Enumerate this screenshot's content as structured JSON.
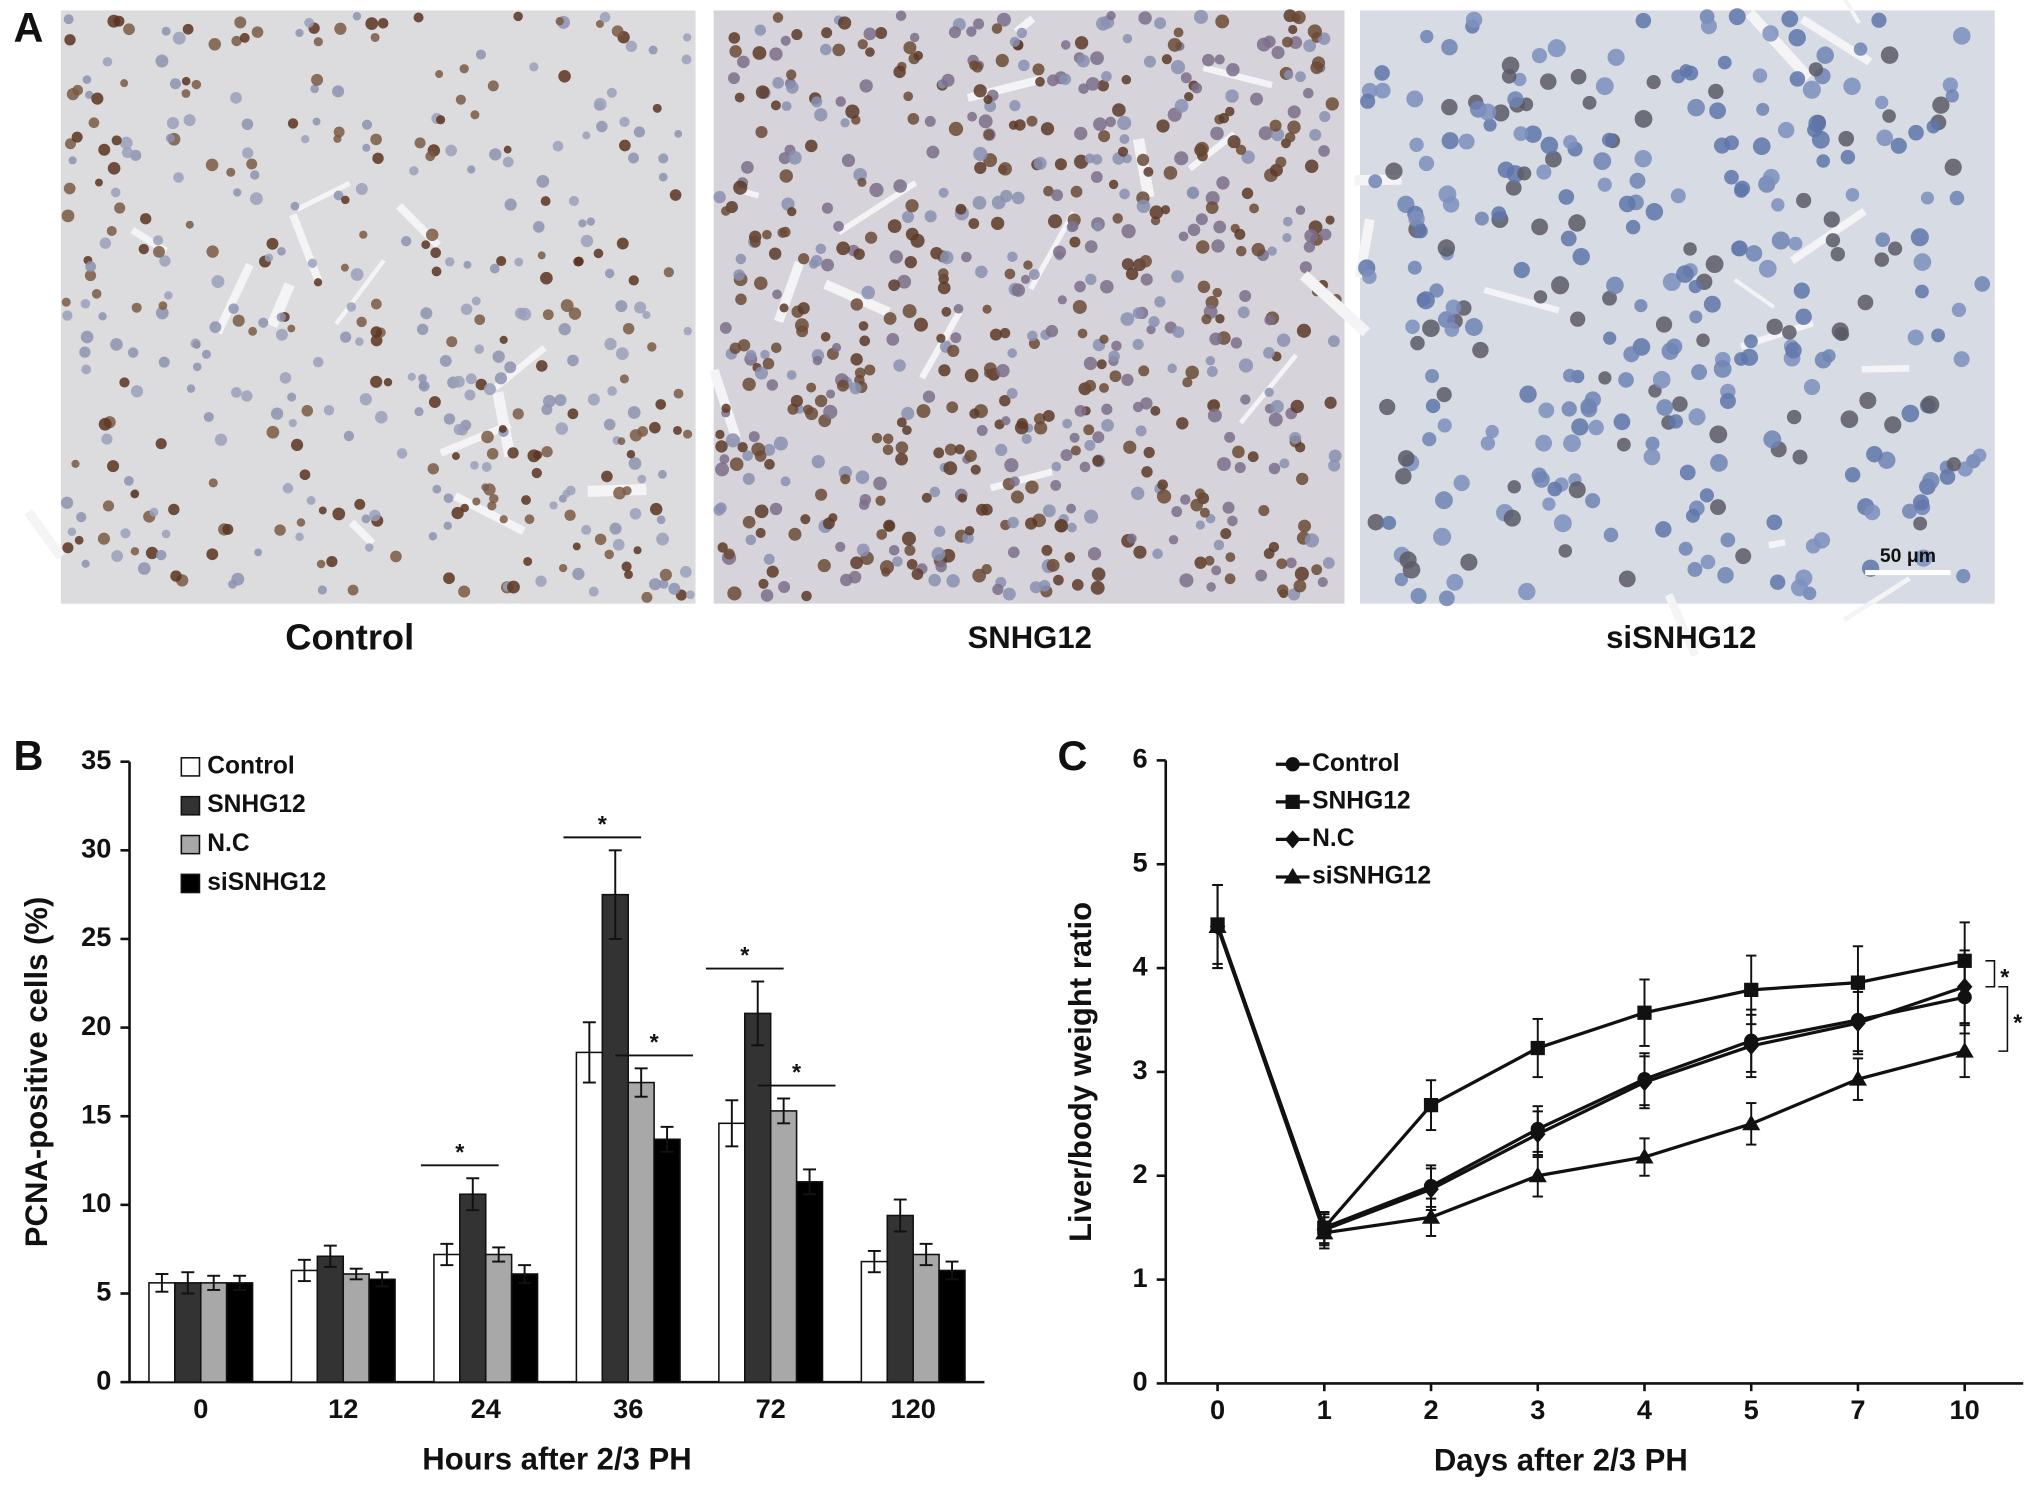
{
  "panel_labels": [
    "A",
    "B",
    "C"
  ],
  "images": [
    {
      "caption": "Control"
    },
    {
      "caption": "SNHG12"
    },
    {
      "caption": "siSNHG12"
    }
  ],
  "scale_bar": "50 μm",
  "chart_data": [
    {
      "type": "bar",
      "x_label": "Hours after 2/3 PH",
      "y_label": "PCNA-positive cells (%)",
      "categories": [
        "0",
        "12",
        "24",
        "36",
        "72",
        "120"
      ],
      "ylim": [
        0,
        35
      ],
      "yticks": [
        0,
        5,
        10,
        15,
        20,
        25,
        30,
        35
      ],
      "series": [
        {
          "name": "Control",
          "color": "#ffffff",
          "values": [
            5.6,
            6.3,
            7.2,
            18.6,
            14.6,
            6.8
          ],
          "errors": [
            0.5,
            0.6,
            0.6,
            1.7,
            1.3,
            0.6
          ]
        },
        {
          "name": "SNHG12",
          "color": "#333333",
          "values": [
            5.6,
            7.1,
            10.6,
            27.5,
            20.8,
            9.4
          ],
          "errors": [
            0.6,
            0.6,
            0.9,
            2.5,
            1.8,
            0.9
          ]
        },
        {
          "name": "N.C",
          "color": "#a8a8a8",
          "values": [
            5.6,
            6.1,
            7.2,
            16.9,
            15.3,
            7.2
          ],
          "errors": [
            0.4,
            0.3,
            0.4,
            0.8,
            0.7,
            0.6
          ]
        },
        {
          "name": "siSNHG12",
          "color": "#000000",
          "values": [
            5.6,
            5.8,
            6.1,
            13.7,
            11.3,
            6.3
          ],
          "errors": [
            0.4,
            0.4,
            0.5,
            0.7,
            0.7,
            0.5
          ]
        }
      ],
      "significance": [
        {
          "label": "*",
          "category": "24",
          "series": [
            "Control",
            "SNHG12"
          ]
        },
        {
          "label": "*",
          "category": "36",
          "series": [
            "Control",
            "SNHG12"
          ]
        },
        {
          "label": "*",
          "category": "36",
          "series": [
            "N.C",
            "siSNHG12"
          ]
        },
        {
          "label": "*",
          "category": "72",
          "series": [
            "Control",
            "SNHG12"
          ]
        },
        {
          "label": "*",
          "category": "72",
          "series": [
            "N.C",
            "siSNHG12"
          ]
        }
      ]
    },
    {
      "type": "line",
      "x_label": "Days after 2/3 PH",
      "y_label": "Liver/body weight ratio",
      "categories": [
        "0",
        "1",
        "2",
        "3",
        "4",
        "5",
        "7",
        "10"
      ],
      "ylim": [
        0,
        6
      ],
      "yticks": [
        0,
        1,
        2,
        3,
        4,
        5,
        6
      ],
      "series": [
        {
          "name": "Control",
          "color": "#111111",
          "marker": "circle",
          "values": [
            4.4,
            1.5,
            1.9,
            2.45,
            2.93,
            3.3,
            3.5,
            3.72
          ],
          "errors": [
            0.4,
            0.15,
            0.2,
            0.22,
            0.25,
            0.3,
            0.3,
            0.35
          ]
        },
        {
          "name": "SNHG12",
          "color": "#111111",
          "marker": "square",
          "values": [
            4.42,
            1.5,
            2.68,
            3.23,
            3.57,
            3.79,
            3.86,
            4.07
          ],
          "errors": [
            0.38,
            0.15,
            0.24,
            0.28,
            0.32,
            0.33,
            0.35,
            0.37
          ]
        },
        {
          "name": "N.C",
          "color": "#111111",
          "marker": "diamond",
          "values": [
            4.4,
            1.48,
            1.87,
            2.4,
            2.9,
            3.25,
            3.47,
            3.82
          ],
          "errors": [
            0.4,
            0.15,
            0.2,
            0.22,
            0.25,
            0.3,
            0.3,
            0.35
          ]
        },
        {
          "name": "siSNHG12",
          "color": "#111111",
          "marker": "triangle",
          "values": [
            4.4,
            1.45,
            1.6,
            2.0,
            2.18,
            2.5,
            2.93,
            3.2
          ],
          "errors": [
            0.4,
            0.15,
            0.18,
            0.2,
            0.18,
            0.2,
            0.2,
            0.25
          ]
        }
      ],
      "significance": [
        {
          "label": "*",
          "series": [
            "SNHG12",
            "N.C"
          ]
        },
        {
          "label": "*",
          "series": [
            "N.C",
            "siSNHG12"
          ]
        }
      ]
    }
  ]
}
